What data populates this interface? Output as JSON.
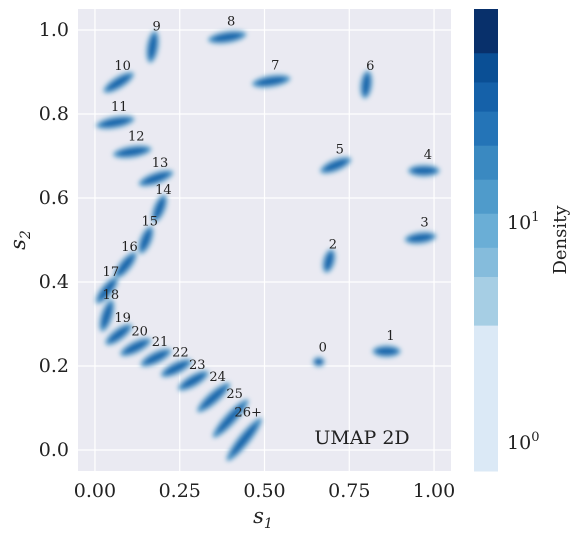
{
  "chart_data": {
    "type": "scatter",
    "xlabel": "s",
    "xlabel_sub": "1",
    "ylabel": "s",
    "ylabel_sub": "2",
    "xlim": [
      -0.05,
      1.05
    ],
    "ylim": [
      -0.05,
      1.05
    ],
    "xticks": [
      {
        "value": 0.0,
        "label": "0.00"
      },
      {
        "value": 0.25,
        "label": "0.25"
      },
      {
        "value": 0.5,
        "label": "0.50"
      },
      {
        "value": 0.75,
        "label": "0.75"
      },
      {
        "value": 1.0,
        "label": "1.00"
      }
    ],
    "yticks": [
      {
        "value": 0.0,
        "label": "0.0"
      },
      {
        "value": 0.2,
        "label": "0.2"
      },
      {
        "value": 0.4,
        "label": "0.4"
      },
      {
        "value": 0.6,
        "label": "0.6"
      },
      {
        "value": 0.8,
        "label": "0.8"
      },
      {
        "value": 1.0,
        "label": "1.0"
      }
    ],
    "grid": true,
    "background": "#eaeaf2",
    "annotation": "UMAP 2D",
    "clusters": [
      {
        "label": "0",
        "x": 0.66,
        "y": 0.21,
        "dx": 0.005,
        "dy": 0.0,
        "size": 0.8
      },
      {
        "label": "1",
        "x": 0.86,
        "y": 0.235,
        "dx": 0.025,
        "dy": 0.0,
        "size": 1.0
      },
      {
        "label": "2",
        "x": 0.69,
        "y": 0.45,
        "dx": 0.005,
        "dy": 0.015,
        "size": 1.0
      },
      {
        "label": "3",
        "x": 0.96,
        "y": 0.505,
        "dx": 0.03,
        "dy": 0.003,
        "size": 1.0
      },
      {
        "label": "4",
        "x": 0.97,
        "y": 0.665,
        "dx": 0.03,
        "dy": 0.0,
        "size": 1.0
      },
      {
        "label": "5",
        "x": 0.71,
        "y": 0.678,
        "dx": 0.03,
        "dy": 0.01,
        "size": 1.0
      },
      {
        "label": "6",
        "x": 0.8,
        "y": 0.87,
        "dx": 0.003,
        "dy": 0.02,
        "size": 1.0
      },
      {
        "label": "7",
        "x": 0.52,
        "y": 0.878,
        "dx": 0.04,
        "dy": 0.005,
        "size": 1.0
      },
      {
        "label": "8",
        "x": 0.39,
        "y": 0.983,
        "dx": 0.04,
        "dy": 0.005,
        "size": 1.0
      },
      {
        "label": "9",
        "x": 0.17,
        "y": 0.96,
        "dx": 0.005,
        "dy": 0.025,
        "size": 1.0
      },
      {
        "label": "10",
        "x": 0.07,
        "y": 0.875,
        "dx": 0.03,
        "dy": 0.015,
        "size": 1.0
      },
      {
        "label": "11",
        "x": 0.06,
        "y": 0.78,
        "dx": 0.04,
        "dy": 0.006,
        "size": 1.0
      },
      {
        "label": "12",
        "x": 0.11,
        "y": 0.71,
        "dx": 0.04,
        "dy": 0.005,
        "size": 1.0
      },
      {
        "label": "13",
        "x": 0.18,
        "y": 0.647,
        "dx": 0.035,
        "dy": 0.01,
        "size": 1.0
      },
      {
        "label": "14",
        "x": 0.19,
        "y": 0.575,
        "dx": 0.01,
        "dy": 0.02,
        "size": 1.0
      },
      {
        "label": "15",
        "x": 0.15,
        "y": 0.5,
        "dx": 0.01,
        "dy": 0.02,
        "size": 1.0
      },
      {
        "label": "16",
        "x": 0.09,
        "y": 0.44,
        "dx": 0.02,
        "dy": 0.02,
        "size": 1.0
      },
      {
        "label": "17",
        "x": 0.035,
        "y": 0.38,
        "dx": 0.02,
        "dy": 0.02,
        "size": 1.0
      },
      {
        "label": "18",
        "x": 0.035,
        "y": 0.32,
        "dx": 0.01,
        "dy": 0.025,
        "size": 1.0
      },
      {
        "label": "19",
        "x": 0.07,
        "y": 0.275,
        "dx": 0.025,
        "dy": 0.015,
        "size": 1.0
      },
      {
        "label": "20",
        "x": 0.12,
        "y": 0.245,
        "dx": 0.03,
        "dy": 0.012,
        "size": 1.0
      },
      {
        "label": "21",
        "x": 0.18,
        "y": 0.22,
        "dx": 0.03,
        "dy": 0.012,
        "size": 1.0
      },
      {
        "label": "22",
        "x": 0.24,
        "y": 0.195,
        "dx": 0.03,
        "dy": 0.012,
        "size": 1.0
      },
      {
        "label": "23",
        "x": 0.29,
        "y": 0.165,
        "dx": 0.03,
        "dy": 0.014,
        "size": 1.0
      },
      {
        "label": "24",
        "x": 0.35,
        "y": 0.125,
        "dx": 0.035,
        "dy": 0.025,
        "size": 1.0
      },
      {
        "label": "25",
        "x": 0.4,
        "y": 0.075,
        "dx": 0.04,
        "dy": 0.035,
        "size": 1.0
      },
      {
        "label": "26+",
        "x": 0.44,
        "y": 0.025,
        "dx": 0.04,
        "dy": 0.04,
        "size": 1.0
      }
    ],
    "colorbar": {
      "label": "Density",
      "scale": "log",
      "colors": [
        "#dbe9f6",
        "#a6cee4",
        "#85bcdc",
        "#6aaed6",
        "#4f9bcb",
        "#3a89c1",
        "#2474b7",
        "#1561a9",
        "#0a4f95",
        "#08306b"
      ],
      "ticks": [
        {
          "base": "10",
          "exp": "0"
        },
        {
          "base": "10",
          "exp": "1"
        }
      ]
    }
  }
}
